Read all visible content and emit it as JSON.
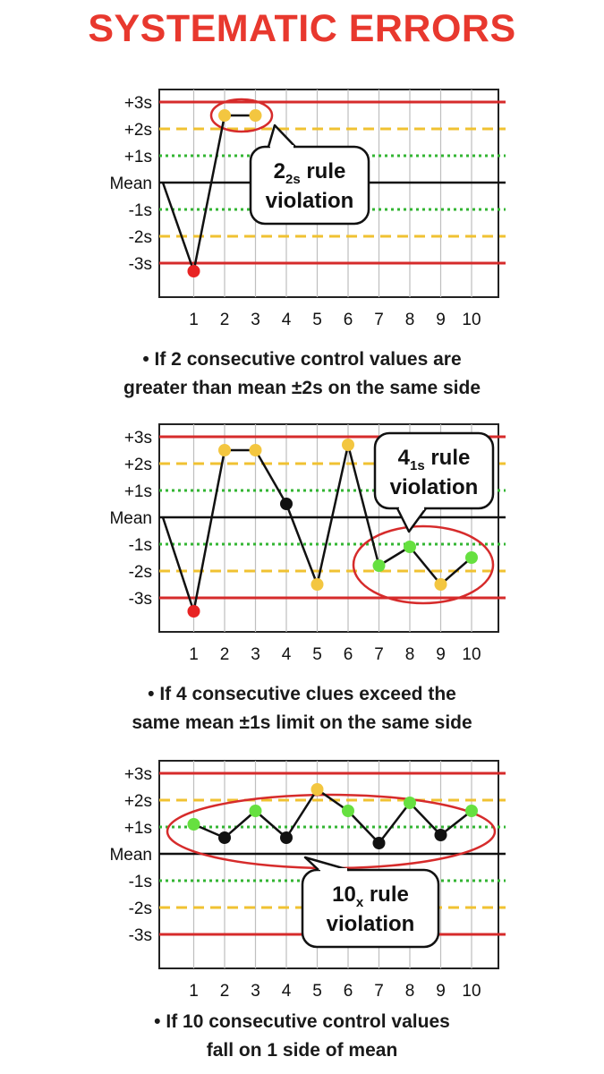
{
  "title": "SYSTEMATIC ERRORS",
  "colors": {
    "title": "#e8382e",
    "sd3": "#d62b2b",
    "sd2": "#f0c232",
    "sd1": "#33b533",
    "mean": "#111111",
    "point_red": "#e82323",
    "point_yellow": "#f3c640",
    "point_green": "#66e040",
    "point_black": "#111111"
  },
  "chart_data": [
    {
      "type": "line",
      "y_levels": [
        "+3s",
        "+2s",
        "+1s",
        "Mean",
        "-1s",
        "-2s",
        "-3s"
      ],
      "ylim": [
        -3.3,
        3.3
      ],
      "categories": [
        "1",
        "2",
        "3",
        "4",
        "5",
        "6",
        "7",
        "8",
        "9",
        "10"
      ],
      "x": [
        0,
        1,
        2,
        3
      ],
      "y": [
        0,
        -3.3,
        2.5,
        2.5
      ],
      "point_colors": [
        "",
        "red",
        "yellow",
        "yellow"
      ],
      "callout": {
        "main": "2",
        "sub": "2s",
        "rest": " rule",
        "line2": "violation"
      },
      "caption": [
        "• If 2 consecutive control values are",
        "greater than mean ±2s on the same side"
      ]
    },
    {
      "type": "line",
      "y_levels": [
        "+3s",
        "+2s",
        "+1s",
        "Mean",
        "-1s",
        "-2s",
        "-3s"
      ],
      "ylim": [
        -3.3,
        3.3
      ],
      "categories": [
        "1",
        "2",
        "3",
        "4",
        "5",
        "6",
        "7",
        "8",
        "9",
        "10"
      ],
      "x": [
        0,
        1,
        2,
        3,
        4,
        5,
        6,
        7,
        8,
        9,
        10
      ],
      "y": [
        0,
        -3.5,
        2.5,
        2.5,
        0.5,
        -2.5,
        2.7,
        -1.8,
        -1.1,
        -2.5,
        -1.5
      ],
      "point_colors": [
        "",
        "red",
        "yellow",
        "yellow",
        "black",
        "yellow",
        "yellow",
        "green",
        "green",
        "yellow",
        "green"
      ],
      "callout": {
        "main": "4",
        "sub": "1s",
        "rest": " rule",
        "line2": "violation"
      },
      "caption": [
        "• If 4 consecutive clues exceed the",
        "same mean ±1s limit on the same side"
      ]
    },
    {
      "type": "line",
      "y_levels": [
        "+3s",
        "+2s",
        "+1s",
        "Mean",
        "-1s",
        "-2s",
        "-3s"
      ],
      "ylim": [
        -3.3,
        3.3
      ],
      "categories": [
        "1",
        "2",
        "3",
        "4",
        "5",
        "6",
        "7",
        "8",
        "9",
        "10"
      ],
      "x": [
        1,
        2,
        3,
        4,
        5,
        6,
        7,
        8,
        9,
        10
      ],
      "y": [
        1.1,
        0.6,
        1.6,
        0.6,
        2.4,
        1.6,
        0.4,
        1.9,
        0.7,
        1.6
      ],
      "point_colors": [
        "green",
        "black",
        "green",
        "black",
        "yellow",
        "green",
        "black",
        "green",
        "black",
        "green"
      ],
      "callout": {
        "main": "10",
        "sub": "x",
        "rest": " rule",
        "line2": "violation"
      },
      "caption": [
        "• If 10 consecutive control values",
        "fall on 1 side of mean"
      ]
    }
  ]
}
